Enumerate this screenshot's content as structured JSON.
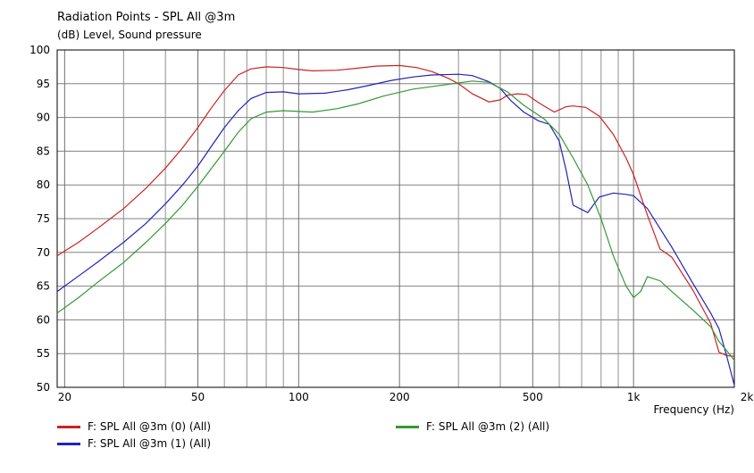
{
  "title": "Radiation Points - SPL All @3m",
  "subtitle": "(dB)  Level, Sound pressure",
  "chart_data": {
    "type": "line",
    "xlabel": "Frequency  (Hz)",
    "x_scale": "log",
    "xlim": [
      19,
      2000
    ],
    "ylim": [
      50,
      100
    ],
    "grid": true,
    "y_ticks": [
      50,
      55,
      60,
      65,
      70,
      75,
      80,
      85,
      90,
      95,
      100
    ],
    "y_tick_labels": [
      "50",
      "55",
      "60",
      "65",
      "70",
      "75",
      "80",
      "85",
      "90",
      "95",
      "100"
    ],
    "x_ticks": [
      20,
      50,
      100,
      200,
      500,
      1000,
      2000
    ],
    "x_tick_labels": [
      "20",
      "50",
      "100",
      "200",
      "500",
      "1k",
      "2k"
    ],
    "x_minor_grid": [
      30,
      40,
      60,
      70,
      80,
      90,
      300,
      400,
      600,
      700,
      800,
      900
    ],
    "legend_position": "bottom",
    "series": [
      {
        "name": "F: SPL All @3m (0)  (All)",
        "color": "#cc2222",
        "points": [
          [
            19,
            69.5
          ],
          [
            22,
            71.5
          ],
          [
            25,
            73.5
          ],
          [
            30,
            76.5
          ],
          [
            35,
            79.5
          ],
          [
            40,
            82.5
          ],
          [
            45,
            85.5
          ],
          [
            50,
            88.5
          ],
          [
            55,
            91.5
          ],
          [
            60,
            94
          ],
          [
            66,
            96.3
          ],
          [
            72,
            97.2
          ],
          [
            80,
            97.5
          ],
          [
            90,
            97.4
          ],
          [
            100,
            97.1
          ],
          [
            110,
            96.9
          ],
          [
            130,
            97
          ],
          [
            150,
            97.3
          ],
          [
            170,
            97.6
          ],
          [
            200,
            97.7
          ],
          [
            225,
            97.4
          ],
          [
            250,
            96.8
          ],
          [
            280,
            95.8
          ],
          [
            300,
            95
          ],
          [
            330,
            93.5
          ],
          [
            370,
            92.3
          ],
          [
            400,
            92.6
          ],
          [
            420,
            93.3
          ],
          [
            450,
            93.5
          ],
          [
            480,
            93.4
          ],
          [
            520,
            92.2
          ],
          [
            580,
            90.8
          ],
          [
            630,
            91.6
          ],
          [
            660,
            91.7
          ],
          [
            720,
            91.5
          ],
          [
            790,
            90.2
          ],
          [
            870,
            87.5
          ],
          [
            950,
            84
          ],
          [
            1000,
            81.5
          ],
          [
            1100,
            75.5
          ],
          [
            1200,
            70.5
          ],
          [
            1300,
            69.3
          ],
          [
            1500,
            64.5
          ],
          [
            1700,
            59.5
          ],
          [
            1800,
            55.2
          ],
          [
            1900,
            54.7
          ],
          [
            2000,
            54.6
          ]
        ]
      },
      {
        "name": "F: SPL All @3m (1)  (All)",
        "color": "#2222bb",
        "points": [
          [
            19,
            64.2
          ],
          [
            22,
            66.5
          ],
          [
            25,
            68.5
          ],
          [
            30,
            71.5
          ],
          [
            35,
            74.3
          ],
          [
            40,
            77.2
          ],
          [
            45,
            80
          ],
          [
            50,
            82.8
          ],
          [
            55,
            85.8
          ],
          [
            60,
            88.5
          ],
          [
            66,
            91
          ],
          [
            72,
            92.8
          ],
          [
            80,
            93.7
          ],
          [
            90,
            93.8
          ],
          [
            100,
            93.5
          ],
          [
            120,
            93.6
          ],
          [
            140,
            94.1
          ],
          [
            160,
            94.7
          ],
          [
            190,
            95.5
          ],
          [
            220,
            96
          ],
          [
            250,
            96.3
          ],
          [
            300,
            96.4
          ],
          [
            330,
            96.2
          ],
          [
            370,
            95.3
          ],
          [
            400,
            94.3
          ],
          [
            430,
            92.5
          ],
          [
            470,
            90.8
          ],
          [
            520,
            89.5
          ],
          [
            560,
            89
          ],
          [
            600,
            86.5
          ],
          [
            630,
            82
          ],
          [
            660,
            77
          ],
          [
            730,
            75.9
          ],
          [
            790,
            78.2
          ],
          [
            870,
            78.8
          ],
          [
            950,
            78.6
          ],
          [
            1000,
            78.4
          ],
          [
            1100,
            76.5
          ],
          [
            1300,
            70.8
          ],
          [
            1500,
            65.5
          ],
          [
            1700,
            61
          ],
          [
            1800,
            58.7
          ],
          [
            1900,
            54.5
          ],
          [
            2000,
            50.3
          ]
        ]
      },
      {
        "name": "F: SPL All @3m (2)  (All)",
        "color": "#339933",
        "points": [
          [
            19,
            61
          ],
          [
            22,
            63.3
          ],
          [
            25,
            65.5
          ],
          [
            30,
            68.5
          ],
          [
            35,
            71.5
          ],
          [
            40,
            74.3
          ],
          [
            45,
            77
          ],
          [
            50,
            79.8
          ],
          [
            55,
            82.5
          ],
          [
            60,
            85
          ],
          [
            66,
            87.8
          ],
          [
            72,
            89.8
          ],
          [
            80,
            90.8
          ],
          [
            90,
            91
          ],
          [
            110,
            90.8
          ],
          [
            130,
            91.3
          ],
          [
            150,
            92
          ],
          [
            180,
            93.2
          ],
          [
            220,
            94.2
          ],
          [
            270,
            94.8
          ],
          [
            330,
            95.4
          ],
          [
            370,
            95.2
          ],
          [
            420,
            93.8
          ],
          [
            470,
            91.8
          ],
          [
            540,
            89.8
          ],
          [
            600,
            87.5
          ],
          [
            660,
            84
          ],
          [
            730,
            80
          ],
          [
            800,
            75
          ],
          [
            870,
            69.5
          ],
          [
            950,
            65
          ],
          [
            1000,
            63.3
          ],
          [
            1050,
            64.2
          ],
          [
            1100,
            66.4
          ],
          [
            1200,
            65.8
          ],
          [
            1300,
            64.2
          ],
          [
            1500,
            61.5
          ],
          [
            1700,
            59
          ],
          [
            1800,
            56.8
          ],
          [
            1900,
            55.4
          ],
          [
            2000,
            54
          ]
        ]
      }
    ]
  }
}
